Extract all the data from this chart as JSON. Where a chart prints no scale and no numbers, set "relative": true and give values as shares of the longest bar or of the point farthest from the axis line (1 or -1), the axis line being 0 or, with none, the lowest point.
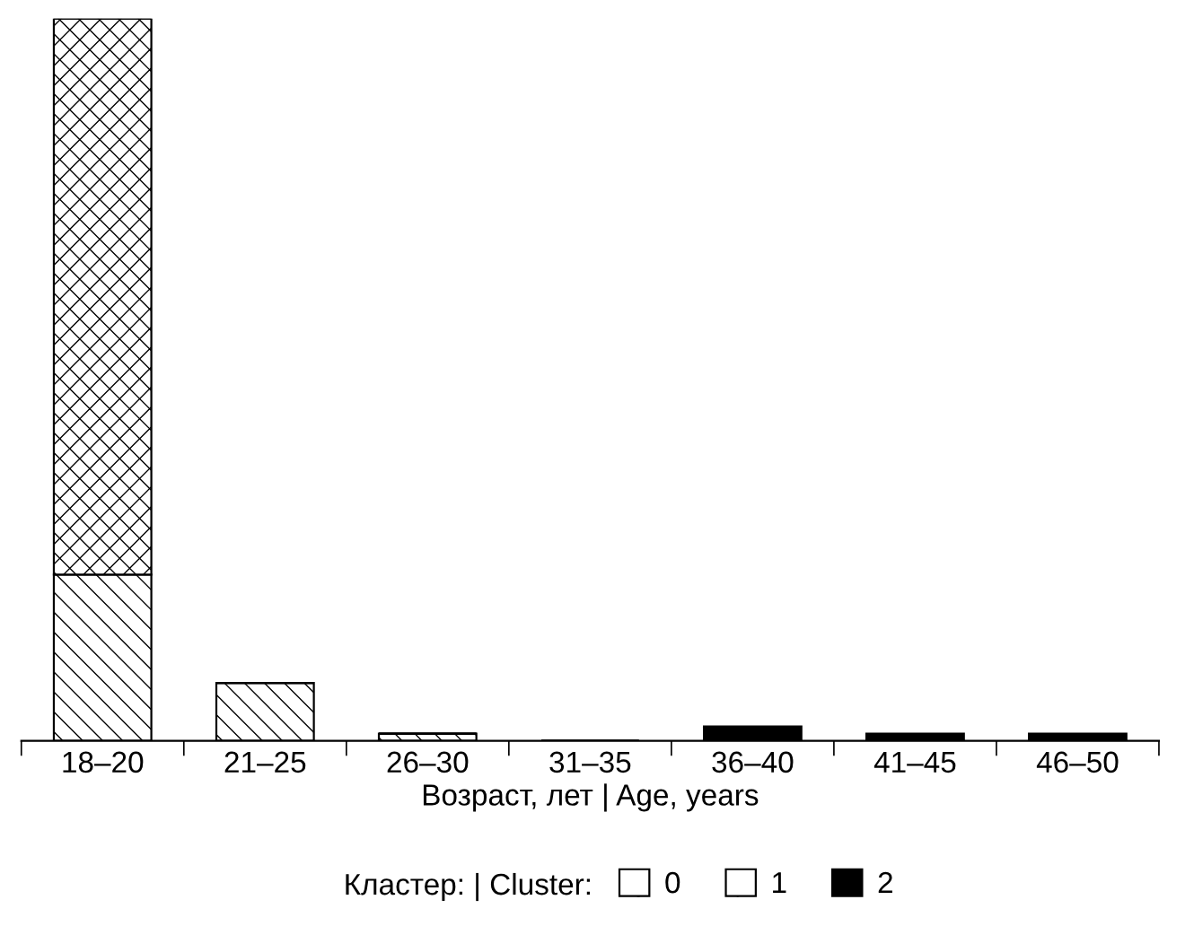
{
  "chart_data": {
    "type": "bar",
    "relative": true,
    "stacked": true,
    "xlabel": "Возраст, лет | Age, years",
    "categories": [
      "18–20",
      "21–25",
      "26–30",
      "31–35",
      "36–40",
      "41–45",
      "46–50"
    ],
    "series": [
      {
        "name": "1",
        "color": "#ffffff",
        "values": [
          0.23,
          0.08,
          0.01,
          0,
          0,
          0,
          0
        ]
      },
      {
        "name": "0",
        "color": "#ffffff",
        "values": [
          0.77,
          0,
          0,
          0,
          0,
          0,
          0
        ]
      },
      {
        "name": "2",
        "color": "#000000",
        "values": [
          0,
          0,
          0,
          0,
          0.02,
          0.01,
          0.01
        ]
      }
    ],
    "legend": "bottom",
    "legend_title": "Кластер: | Cluster:",
    "grid": false
  }
}
